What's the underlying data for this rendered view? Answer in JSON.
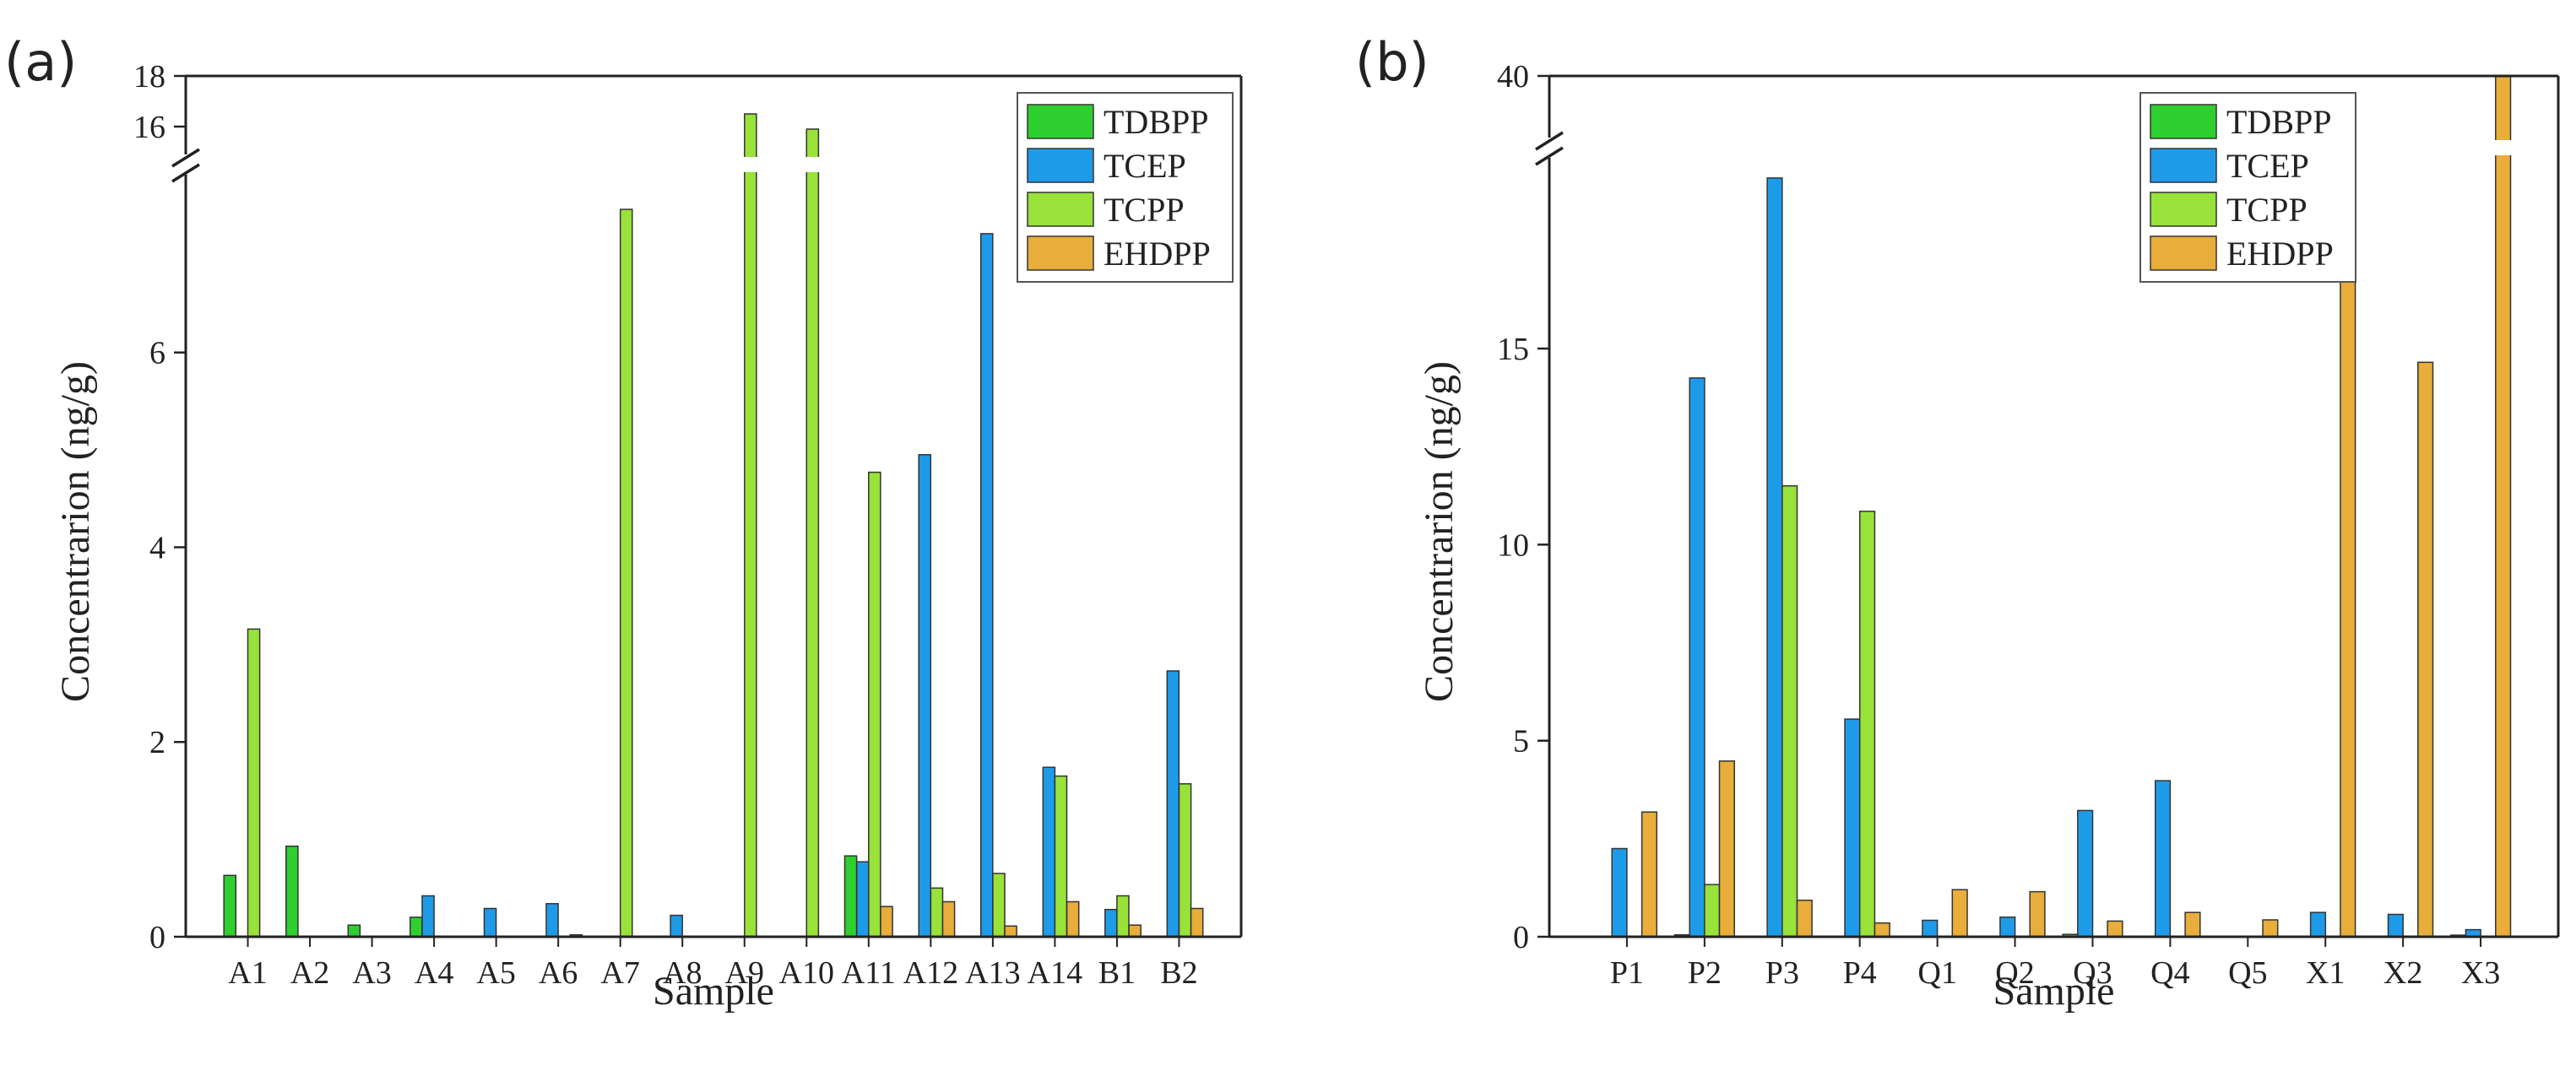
{
  "colors": {
    "TDBPP": "#2ecf2e",
    "TCEP": "#1e9be8",
    "TCPP": "#98e23a",
    "EHDPP": "#e8ad3a",
    "axis": "#222222",
    "bar_edge": "#333333"
  },
  "chart_data": [
    {
      "panel_label": "(a)",
      "type": "bar",
      "title": "",
      "xlabel": "Sample",
      "ylabel": "Concentrarion (ng/g)",
      "categories": [
        "A1",
        "A2",
        "A3",
        "A4",
        "A5",
        "A6",
        "A7",
        "A8",
        "A9",
        "A10",
        "A11",
        "A12",
        "A13",
        "A14",
        "B1",
        "B2"
      ],
      "series": [
        {
          "name": "TDBPP",
          "values": [
            0.63,
            0.93,
            0.12,
            0.2,
            0,
            0,
            0,
            0,
            0,
            0,
            0.83,
            0,
            0,
            0,
            0,
            0
          ]
        },
        {
          "name": "TCEP",
          "values": [
            0,
            0,
            0,
            0.42,
            0.29,
            0.34,
            0,
            0.22,
            0,
            0,
            0.77,
            4.95,
            7.22,
            1.74,
            0.28,
            2.73
          ]
        },
        {
          "name": "TCPP",
          "values": [
            3.16,
            0,
            0,
            0,
            0,
            0,
            7.47,
            0,
            16.5,
            15.9,
            4.77,
            0.5,
            0.65,
            1.65,
            0.42,
            1.57
          ]
        },
        {
          "name": "EHDPP",
          "values": [
            0,
            0,
            0,
            0,
            0,
            0.02,
            0,
            0,
            0,
            0,
            0.31,
            0.36,
            0.11,
            0.36,
            0.12,
            0.29
          ]
        }
      ],
      "ylim": [
        0,
        18
      ],
      "axis_break": {
        "lower_max": 7.8,
        "upper_min": 15
      },
      "yticks_lower": [
        0,
        2,
        4,
        6
      ],
      "yticks_upper": [
        16,
        18
      ],
      "legend": {
        "position": "top-right",
        "entries": [
          "TDBPP",
          "TCEP",
          "TCPP",
          "EHDPP"
        ]
      },
      "grid": false
    },
    {
      "panel_label": "(b)",
      "type": "bar",
      "title": "",
      "xlabel": "Sample",
      "ylabel": "Concentrarion (ng/g)",
      "categories": [
        "P1",
        "P2",
        "P3",
        "P4",
        "Q1",
        "Q2",
        "Q3",
        "Q4",
        "Q5",
        "X1",
        "X2",
        "X3"
      ],
      "series": [
        {
          "name": "TDBPP",
          "values": [
            0,
            0.05,
            0,
            0,
            0,
            0,
            0.06,
            0,
            0,
            0,
            0,
            0.04
          ]
        },
        {
          "name": "TCEP",
          "values": [
            2.25,
            14.25,
            19.35,
            5.55,
            0.42,
            0.5,
            3.22,
            3.98,
            0,
            0.62,
            0.57,
            0.18
          ]
        },
        {
          "name": "TCPP",
          "values": [
            0,
            1.33,
            11.5,
            10.85,
            0,
            0,
            0,
            0,
            0,
            0,
            0,
            0
          ]
        },
        {
          "name": "EHDPP",
          "values": [
            3.18,
            4.48,
            0.93,
            0.35,
            1.2,
            1.15,
            0.4,
            0.62,
            0.43,
            37.5,
            14.65,
            40
          ]
        }
      ],
      "ylim": [
        0,
        40
      ],
      "axis_break": {
        "lower_max": 19.8,
        "upper_min": 38
      },
      "yticks_lower": [
        0,
        5,
        10,
        15
      ],
      "yticks_upper": [
        40
      ],
      "legend": {
        "position": "top-right",
        "entries": [
          "TDBPP",
          "TCEP",
          "TCPP",
          "EHDPP"
        ]
      },
      "grid": false
    }
  ]
}
